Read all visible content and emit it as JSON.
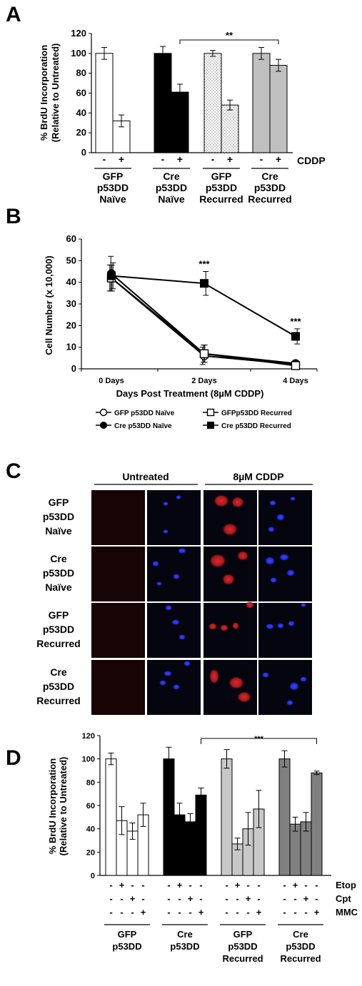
{
  "figure": {
    "panel_a": {
      "letter": "A",
      "chart_data": {
        "type": "bar",
        "ylabel": "% BrdU Incorporation (Relative to Untreated)",
        "ylabel_lines": [
          "% BrdU Incorporation",
          "(Relative to Untreated)"
        ],
        "ylim": [
          0,
          120
        ],
        "yticks": [
          0,
          20,
          40,
          60,
          80,
          100,
          120
        ],
        "treatment_label": "CDDP",
        "groups": [
          {
            "label_lines": [
              "GFP",
              "p53DD",
              "Naïve"
            ],
            "fill": "#ffffff",
            "pattern": "none",
            "bars": [
              {
                "sign": "-",
                "value": 100,
                "err": 6
              },
              {
                "sign": "+",
                "value": 32,
                "err": 6
              }
            ]
          },
          {
            "label_lines": [
              "Cre",
              "p53DD",
              "Naïve"
            ],
            "fill": "#000000",
            "pattern": "none",
            "bars": [
              {
                "sign": "-",
                "value": 100,
                "err": 7
              },
              {
                "sign": "+",
                "value": 61,
                "err": 8
              }
            ]
          },
          {
            "label_lines": [
              "GFP",
              "p53DD",
              "Recurred"
            ],
            "fill": "#ffffff",
            "pattern": "dots",
            "bars": [
              {
                "sign": "-",
                "value": 100,
                "err": 3
              },
              {
                "sign": "+",
                "value": 48,
                "err": 5
              }
            ]
          },
          {
            "label_lines": [
              "Cre",
              "p53DD",
              "Recurred"
            ],
            "fill": "#c0c0c0",
            "pattern": "none",
            "bars": [
              {
                "sign": "-",
                "value": 100,
                "err": 6
              },
              {
                "sign": "+",
                "value": 88,
                "err": 6
              }
            ]
          }
        ],
        "significance": {
          "label": "**",
          "from_group": 1,
          "to_group": 3
        }
      }
    },
    "panel_b": {
      "letter": "B",
      "chart_data": {
        "type": "line",
        "xlabel": "Days Post Treatment (8µM CDDP)",
        "ylabel": "Cell Number (x 10,000)",
        "ylim": [
          0,
          60
        ],
        "yticks": [
          0,
          10,
          20,
          30,
          40,
          50,
          60
        ],
        "categories": [
          "0 Days",
          "2 Days",
          "4 Days"
        ],
        "series": [
          {
            "name": "GFP p53DD Naïve",
            "marker": "circle-open",
            "values": [
              42,
              6,
              2
            ],
            "err": [
              6,
              4,
              1
            ]
          },
          {
            "name": "Cre p53DD Naïve",
            "marker": "circle-filled",
            "values": [
              44,
              7,
              2.5
            ],
            "err": [
              8,
              4,
              1
            ]
          },
          {
            "name": "GFPp53DD Recurred",
            "marker": "square-open",
            "values": [
              42,
              7,
              1.5
            ],
            "err": [
              6,
              4,
              1
            ]
          },
          {
            "name": "Cre p53DD Recurred",
            "marker": "square-filled",
            "values": [
              43,
              39.5,
              15
            ],
            "err": [
              6,
              5.5,
              3.5
            ]
          }
        ],
        "annotations": [
          {
            "category": "2 Days",
            "label": "***"
          },
          {
            "category": "4 Days",
            "label": "***"
          }
        ]
      }
    },
    "panel_c": {
      "letter": "C",
      "column_headers": [
        "Untreated",
        "8µM CDDP"
      ],
      "rows": [
        {
          "label_lines": [
            "GFP",
            "p53DD",
            "Naïve"
          ]
        },
        {
          "label_lines": [
            "Cre",
            "p53DD",
            "Naïve"
          ]
        },
        {
          "label_lines": [
            "GFP",
            "p53DD",
            "Recurred"
          ]
        },
        {
          "label_lines": [
            "Cre",
            "p53DD",
            "Recurred"
          ]
        }
      ],
      "colors": {
        "red_stain": "#d4181c",
        "blue_stain": "#1e2adf",
        "background": "#050505"
      }
    },
    "panel_d": {
      "letter": "D",
      "chart_data": {
        "type": "bar",
        "ylabel": "% BrdU Incorporation (Relative to Untreated)",
        "ylabel_lines": [
          "% BrdU Incorporation",
          "(Relative to Untreated)"
        ],
        "ylim": [
          0,
          120
        ],
        "yticks": [
          0,
          20,
          40,
          60,
          80,
          100,
          120
        ],
        "treatment_rows": [
          {
            "label": "Etop",
            "signs": [
              "-",
              "+",
              "-",
              "-"
            ]
          },
          {
            "label": "Cpt",
            "signs": [
              "-",
              "-",
              "+",
              "-"
            ]
          },
          {
            "label": "MMC",
            "signs": [
              "-",
              "-",
              "-",
              "+"
            ]
          }
        ],
        "groups": [
          {
            "label_lines": [
              "GFP",
              "p53DD"
            ],
            "fill": "#ffffff",
            "values": [
              100,
              47,
              38,
              52
            ],
            "err": [
              5,
              12,
              7,
              10
            ]
          },
          {
            "label_lines": [
              "Cre",
              "p53DD"
            ],
            "fill": "#000000",
            "values": [
              100,
              52,
              46,
              69
            ],
            "err": [
              10,
              10,
              7,
              6
            ]
          },
          {
            "label_lines": [
              "GFP",
              "p53DD",
              "Recurred"
            ],
            "fill": "#c8c8c8",
            "values": [
              100,
              27,
              40,
              57
            ],
            "err": [
              8,
              5,
              14,
              16
            ]
          },
          {
            "label_lines": [
              "Cre",
              "p53DD",
              "Recurred"
            ],
            "fill": "#808080",
            "values": [
              100,
              44,
              46,
              88
            ],
            "err": [
              7,
              6,
              8,
              1.5
            ]
          }
        ],
        "significance": {
          "label": "***",
          "from_group": 1,
          "to_group": 3
        }
      }
    }
  }
}
